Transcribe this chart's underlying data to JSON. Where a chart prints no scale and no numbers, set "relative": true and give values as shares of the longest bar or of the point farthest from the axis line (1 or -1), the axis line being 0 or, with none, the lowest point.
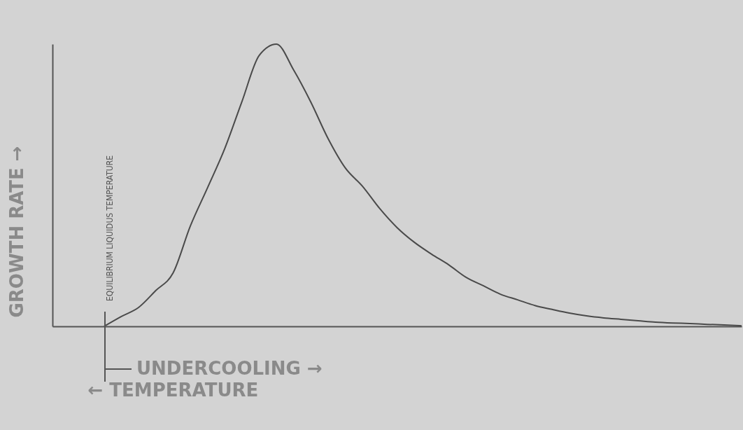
{
  "chart_data": {
    "type": "line",
    "relative": true,
    "ylabel": "GROWTH RATE →",
    "xlabel": "← TEMPERATURE",
    "annotations": [
      "EQUILIBRIUM LIQUIDUS TEMPERATURE",
      "UNDERCOOLING →"
    ],
    "categories": [
      null,
      null,
      null,
      null,
      null,
      null,
      null,
      null,
      null,
      null,
      null,
      null,
      null,
      null,
      null,
      null,
      null,
      null,
      null,
      null,
      null,
      null,
      null,
      null,
      null,
      null,
      null,
      null,
      null,
      null,
      null,
      null,
      null,
      null,
      null,
      null,
      null,
      null,
      null,
      null,
      null
    ],
    "series": [
      {
        "color": "#4a4a4a",
        "values": [
          null,
          null,
          null,
          0,
          0.035,
          0.067,
          0.127,
          0.189,
          0.355,
          0.491,
          0.63,
          0.797,
          0.96,
          1,
          0.908,
          0.794,
          0.665,
          0.561,
          0.496,
          0.417,
          0.35,
          0.298,
          0.256,
          0.218,
          0.174,
          0.144,
          0.114,
          0.094,
          0.074,
          0.06,
          0.047,
          0.037,
          0.03,
          0.025,
          0.02,
          0.015,
          0.012,
          0.01,
          0.007,
          0.005,
          0.002
        ]
      }
    ]
  }
}
